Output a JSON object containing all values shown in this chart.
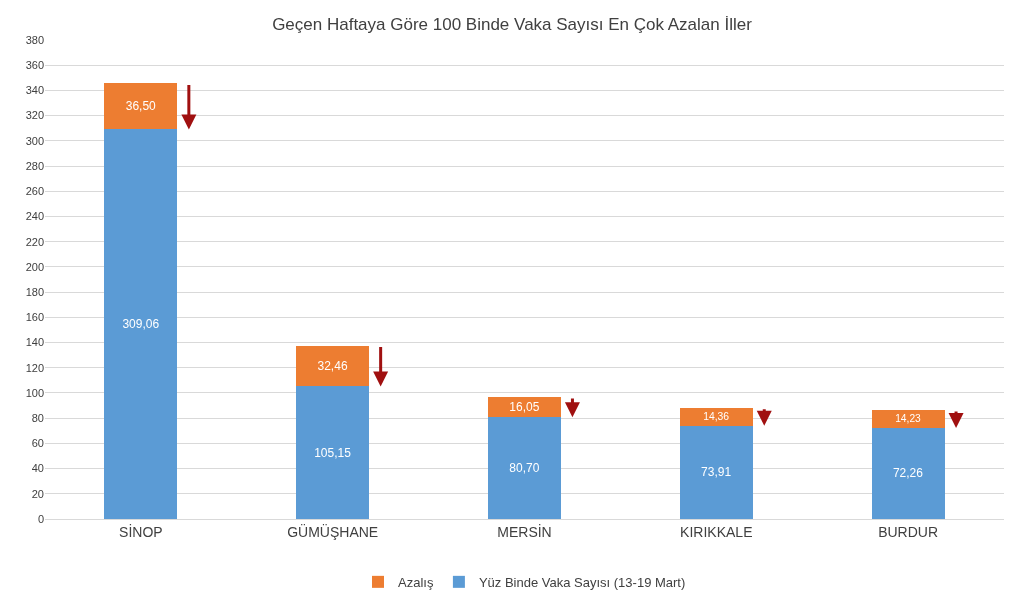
{
  "chart_data": {
    "type": "bar",
    "title": "Geçen Haftaya Göre 100 Binde Vaka Sayısı En Çok Azalan İller",
    "categories": [
      "SİNOP",
      "GÜMÜŞHANE",
      "MERSİN",
      "KIRIKKALE",
      "BURDUR"
    ],
    "stacked": true,
    "series": [
      {
        "name": "Yüz Binde Vaka Sayısı (13-19 Mart)",
        "color": "#5b9bd5",
        "values": [
          309.06,
          105.15,
          80.7,
          73.91,
          72.26
        ],
        "value_labels": [
          "309,06",
          "105,15",
          "80,70",
          "73,91",
          "72,26"
        ]
      },
      {
        "name": "Azalış",
        "color": "#ed7d31",
        "values": [
          36.5,
          32.46,
          16.05,
          14.36,
          14.23
        ],
        "value_labels": [
          "36,50",
          "32,46",
          "16,05",
          "14,36",
          "14,23"
        ]
      }
    ],
    "ylim": [
      0,
      380
    ],
    "yticks": [
      0,
      20,
      40,
      60,
      80,
      100,
      120,
      140,
      160,
      180,
      200,
      220,
      240,
      260,
      280,
      300,
      320,
      340,
      360,
      380
    ],
    "grid": "y",
    "legend": "bottom"
  }
}
